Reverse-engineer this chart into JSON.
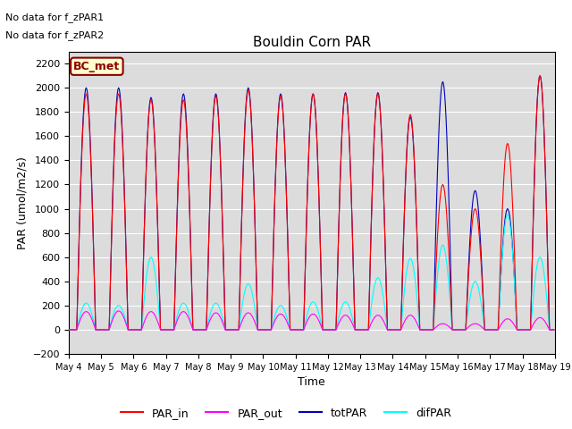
{
  "title": "Bouldin Corn PAR",
  "ylabel": "PAR (umol/m2/s)",
  "xlabel": "Time",
  "annotation_lines": [
    "No data for f_zPAR1",
    "No data for f_zPAR2"
  ],
  "legend_label": "BC_met",
  "xlim_start_day": 4,
  "xlim_end_day": 19,
  "ylim": [
    -200,
    2300
  ],
  "yticks": [
    -200,
    0,
    200,
    400,
    600,
    800,
    1000,
    1200,
    1400,
    1600,
    1800,
    2000,
    2200
  ],
  "colors": {
    "PAR_in": "#ff0000",
    "PAR_out": "#ff00ff",
    "totPAR": "#0000bb",
    "difPAR": "#00ffff"
  },
  "background_color": "#dcdcdc",
  "line_widths": {
    "PAR_in": 0.8,
    "PAR_out": 0.8,
    "totPAR": 0.8,
    "difPAR": 0.8
  },
  "day_peaks_tot": [
    2000,
    2000,
    1920,
    1950,
    1950,
    2000,
    1950,
    1950,
    1960,
    1960,
    1760,
    2050,
    1150,
    1000,
    2100
  ],
  "day_peaks_in": [
    1950,
    1950,
    1900,
    1900,
    1930,
    1980,
    1930,
    1950,
    1950,
    1950,
    1780,
    1200,
    1000,
    1540,
    2100
  ],
  "day_peaks_dif": [
    220,
    200,
    600,
    220,
    220,
    380,
    200,
    230,
    230,
    430,
    590,
    700,
    400,
    950,
    600
  ],
  "day_peaks_out": [
    150,
    155,
    150,
    150,
    140,
    140,
    130,
    130,
    120,
    120,
    120,
    50,
    50,
    90,
    100
  ]
}
